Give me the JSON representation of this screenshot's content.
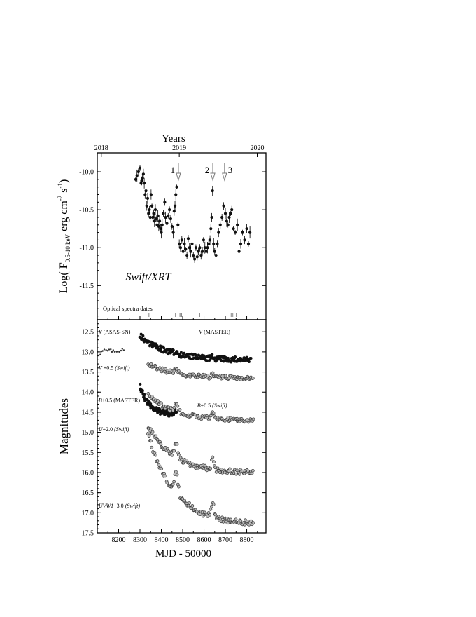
{
  "figure": {
    "top_axis_title": "Years",
    "top_ylabel": "Log( F",
    "top_ylabel_sub": "0.5-10 keV",
    "top_ylabel_tail": " erg cm",
    "top_ylabel_exp1": "-2",
    "top_ylabel_mid": " s",
    "top_ylabel_exp2": "-1",
    "top_ylabel_close": ")",
    "instrument_label": "Swift/XRT",
    "optical_dates_label": "Optical spectra dates",
    "bottom_ylabel": "Magnitudes",
    "xlabel": "MJD - 50000"
  },
  "chart_data": [
    {
      "type": "scatter",
      "panel": "top",
      "title": "",
      "xlabel": "",
      "ylabel": "Log( F0.5-10 keV erg cm-2 s-1)",
      "xlim": [
        8100,
        8890
      ],
      "ylim": [
        -11.95,
        -9.75
      ],
      "yticks": [
        -10.0,
        -10.5,
        -11.0,
        -11.5
      ],
      "top_axis": {
        "label": "Years",
        "ticks": [
          {
            "label": "2018",
            "mjd": 8119
          },
          {
            "label": "2019",
            "mjd": 8484
          },
          {
            "label": "2020",
            "mjd": 8849
          }
        ]
      },
      "arrows": [
        {
          "label": "1",
          "mjd": 8480
        },
        {
          "label": "2",
          "mjd": 8641
        },
        {
          "label": "3",
          "mjd": 8696
        }
      ],
      "optical_spectra_dates": [
        8342,
        8466,
        8487,
        8491,
        8495,
        8580,
        8727,
        8731,
        8735,
        8751
      ],
      "series": [
        {
          "name": "Swift/XRT",
          "x": [
            8280,
            8286,
            8293,
            8300,
            8305,
            8308,
            8312,
            8316,
            8320,
            8324,
            8328,
            8332,
            8336,
            8340,
            8344,
            8348,
            8352,
            8356,
            8360,
            8364,
            8368,
            8372,
            8376,
            8380,
            8384,
            8388,
            8392,
            8396,
            8400,
            8404,
            8410,
            8416,
            8420,
            8426,
            8432,
            8438,
            8444,
            8450,
            8456,
            8460,
            8464,
            8468,
            8472,
            8478,
            8484,
            8490,
            8496,
            8502,
            8508,
            8514,
            8520,
            8526,
            8532,
            8538,
            8544,
            8550,
            8556,
            8562,
            8568,
            8574,
            8580,
            8586,
            8592,
            8598,
            8604,
            8610,
            8616,
            8622,
            8628,
            8632,
            8636,
            8640,
            8645,
            8650,
            8656,
            8662,
            8668,
            8676,
            8684,
            8692,
            8700,
            8706,
            8712,
            8718,
            8724,
            8730,
            8738,
            8746,
            8756,
            8764,
            8772,
            8780,
            8790,
            8800,
            8808,
            8815
          ],
          "y": [
            -10.1,
            -10.05,
            -10.0,
            -9.95,
            -10.15,
            -10.12,
            -10.08,
            -10.03,
            -10.15,
            -10.3,
            -10.25,
            -10.45,
            -10.35,
            -10.55,
            -10.5,
            -10.6,
            -10.3,
            -10.45,
            -10.6,
            -10.55,
            -10.65,
            -10.5,
            -10.62,
            -10.7,
            -10.58,
            -10.72,
            -10.65,
            -10.75,
            -10.8,
            -10.7,
            -10.55,
            -10.4,
            -10.6,
            -10.68,
            -10.58,
            -10.5,
            -10.62,
            -10.72,
            -10.8,
            -10.52,
            -10.45,
            -10.3,
            -10.2,
            -10.7,
            -10.95,
            -11.0,
            -10.9,
            -11.05,
            -10.95,
            -11.02,
            -11.1,
            -10.88,
            -11.0,
            -11.05,
            -10.95,
            -11.1,
            -11.15,
            -11.0,
            -11.12,
            -11.05,
            -11.0,
            -11.1,
            -11.05,
            -10.9,
            -11.0,
            -11.05,
            -11.0,
            -10.95,
            -10.9,
            -10.75,
            -10.6,
            -10.25,
            -10.95,
            -11.05,
            -11.1,
            -10.95,
            -10.8,
            -10.7,
            -10.6,
            -10.45,
            -10.55,
            -10.65,
            -10.7,
            -10.6,
            -10.55,
            -10.5,
            -10.75,
            -10.8,
            -10.7,
            -11.05,
            -10.95,
            -10.8,
            -10.9,
            -10.75,
            -10.95,
            -10.8
          ]
        }
      ]
    },
    {
      "type": "scatter",
      "panel": "bottom",
      "title": "",
      "xlabel": "MJD - 50000",
      "ylabel": "Magnitudes",
      "xlim": [
        8100,
        8890
      ],
      "ylim": [
        17.5,
        12.2
      ],
      "invert_y": true,
      "xticks": [
        8200,
        8300,
        8400,
        8500,
        8600,
        8700,
        8800
      ],
      "yticks": [
        12.5,
        13.0,
        13.5,
        14.0,
        14.5,
        15.0,
        15.5,
        16.0,
        16.5,
        17.0,
        17.5
      ],
      "annotations": [
        {
          "main": "V",
          "rest": " (ASAS-SN)",
          "mjd": 8106,
          "mag": 12.55
        },
        {
          "main": "V",
          "rest": " (MASTER)",
          "mjd": 8576,
          "mag": 12.55
        },
        {
          "main": "V",
          "rest": " +0.5 ",
          "paren": "(Swift)",
          "mjd": 8106,
          "mag": 13.45
        },
        {
          "main": "B",
          "rest": "+0.5 (MASTER)",
          "mjd": 8106,
          "mag": 14.25
        },
        {
          "main": "B",
          "rest": "+0.5 ",
          "paren": "(Swift)",
          "mjd": 8568,
          "mag": 14.38
        },
        {
          "main": "U",
          "rest": "+2.0 ",
          "paren": "(Swift)",
          "mjd": 8106,
          "mag": 14.97
        },
        {
          "main": "UVW1",
          "rest": "+3.0 ",
          "paren": "(Swift)",
          "mjd": 8106,
          "mag": 16.87
        }
      ],
      "series": [
        {
          "name": "V (ASAS-SN)",
          "start": 8106,
          "end": 8225,
          "mag0": 13.05,
          "mag1": 12.95,
          "hump": 0,
          "noise": 0.05,
          "n": 18,
          "marker": "small-dot"
        },
        {
          "name": "V (MASTER)",
          "start": 8300,
          "end": 8820,
          "mag0": 12.6,
          "mag1": 13.2,
          "hump": 0.05,
          "noise": 0.07,
          "n": 200,
          "marker": "filled"
        },
        {
          "name": "V +0.5 (Swift)",
          "start": 8338,
          "end": 8830,
          "mag0": 13.3,
          "mag1": 13.65,
          "hump": 0.12,
          "noise": 0.05,
          "n": 110,
          "marker": "open"
        },
        {
          "name": "B+0.5 (MASTER)",
          "start": 8300,
          "end": 8470,
          "mag0": 13.85,
          "mag1": 14.55,
          "hump": 0.1,
          "noise": 0.07,
          "n": 120,
          "marker": "filled"
        },
        {
          "name": "B+0.5 (Swift)",
          "start": 8338,
          "end": 8830,
          "mag0": 14.05,
          "mag1": 14.7,
          "hump": 0.2,
          "noise": 0.05,
          "n": 110,
          "marker": "open"
        },
        {
          "name": "U+2.0 (Swift)",
          "start": 8338,
          "end": 8830,
          "mag0": 14.85,
          "mag1": 16.0,
          "hump": 0.35,
          "noise": 0.06,
          "n": 110,
          "marker": "open"
        },
        {
          "name": "UVW1+3.0 (Swift)",
          "start": 8338,
          "end": 8830,
          "mag0": 15.05,
          "mag1": 17.25,
          "hump": 0.5,
          "noise": 0.07,
          "n": 110,
          "marker": "open"
        }
      ]
    }
  ]
}
